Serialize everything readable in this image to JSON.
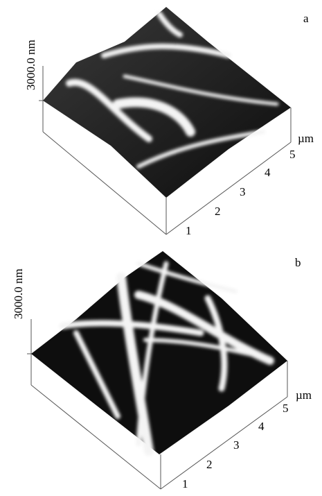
{
  "panels": [
    {
      "label": "a",
      "z_label": "3000.0 nm",
      "ticks": [
        1,
        2,
        3,
        4,
        5
      ],
      "unit": "µm"
    },
    {
      "label": "b",
      "z_label": "3000.0 nm",
      "ticks": [
        1,
        2,
        3,
        4,
        5
      ],
      "unit": "µm"
    }
  ]
}
